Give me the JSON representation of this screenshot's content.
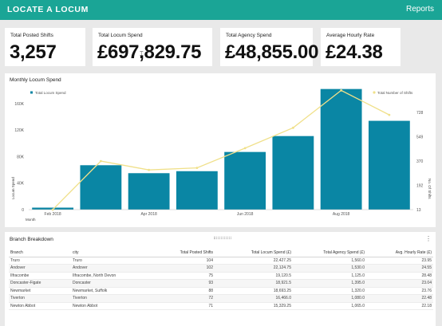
{
  "header": {
    "brand": "LOCATE A LOCUM",
    "reports_link": "Reports"
  },
  "kpis": [
    {
      "label": "Total Posted Shifts",
      "value": "3,257"
    },
    {
      "label": "Total Locum Spend",
      "value": "£697,829.75"
    },
    {
      "label": "Total Agency Spend",
      "value": "£48,855.00"
    },
    {
      "label": "Average Hourly Rate",
      "value": "£24.38"
    }
  ],
  "colors": {
    "accent": "#1aa596",
    "bar": "#0a86a4",
    "line": "#f0e08a"
  },
  "chart_panel": {
    "title": "Monthly Locum Spend"
  },
  "chart_data": {
    "type": "bar",
    "title": "Monthly Locum Spend",
    "categories": [
      "Feb 2018",
      "Mar 2018",
      "Apr 2018",
      "May 2018",
      "Jun 2018",
      "Jul 2018",
      "Aug 2018",
      "Sep 2018"
    ],
    "x_tick_labels": [
      "Feb 2018",
      "Apr 2018",
      "Jun 2018",
      "Aug 2018"
    ],
    "xlabel": "Month",
    "ylabel": "Locum Spend",
    "ylabel_right": "No. Of Shifts",
    "ylim": [
      0,
      184000
    ],
    "y_ticks": [
      0,
      40000,
      80000,
      120000,
      160000
    ],
    "y_tick_labels": [
      "0",
      "40K",
      "80K",
      "120K",
      "160K"
    ],
    "ylim_right": [
      13,
      910
    ],
    "y_ticks_right": [
      13,
      192,
      370,
      549,
      728
    ],
    "series": [
      {
        "name": "Total Locum Spend",
        "type": "bar",
        "axis": "left",
        "values": [
          3000,
          67000,
          55000,
          58000,
          87000,
          111000,
          182000,
          134000
        ]
      },
      {
        "name": "Total Number of Shifts",
        "type": "line",
        "axis": "right",
        "values": [
          13,
          370,
          305,
          320,
          465,
          615,
          890,
          710
        ]
      }
    ],
    "grid": false,
    "legend": "top"
  },
  "table_panel": {
    "title": "Branch Breakdown"
  },
  "table": {
    "columns": [
      "Branch",
      "city",
      "Total Posted Shifts",
      "Total Locum Spend (£)",
      "Total Agency Spend (£)",
      "Avg. Hourly Rate (£)"
    ],
    "rows": [
      [
        "Truro",
        "Truro",
        "104",
        "22,427.25",
        "1,560.0",
        "23.95"
      ],
      [
        "Andover",
        "Andover",
        "102",
        "22,124.75",
        "1,530.0",
        "24.55"
      ],
      [
        "Ilfracombe",
        "Ilfracombe, North Devon",
        "75",
        "19,120.5",
        "1,125.0",
        "28.48"
      ],
      [
        "Doncaster-Figate",
        "Doncaster",
        "93",
        "18,921.5",
        "1,395.0",
        "23.04"
      ],
      [
        "Newmarket",
        "Newmarket, Suffolk",
        "88",
        "18,693.25",
        "1,320.0",
        "23.76"
      ],
      [
        "Tiverton",
        "Tiverton",
        "72",
        "16,466.0",
        "1,080.0",
        "22.48"
      ],
      [
        "Newton Abbot",
        "Newton Abbot",
        "71",
        "15,329.25",
        "1,065.0",
        "22.18"
      ]
    ]
  }
}
